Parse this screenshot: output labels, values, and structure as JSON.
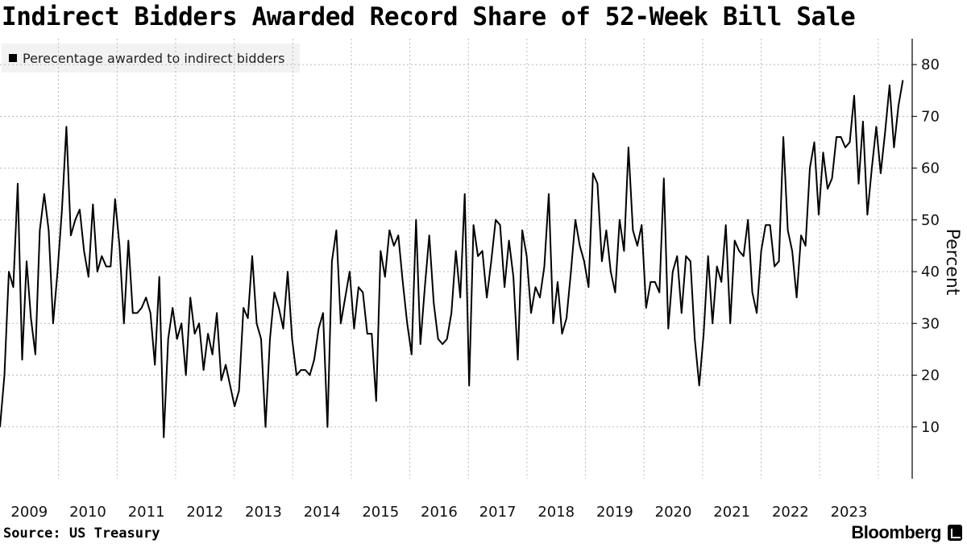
{
  "chart_data": {
    "type": "line",
    "title": "Indirect Bidders Awarded Record Share of 52-Week Bill Sale",
    "ylabel": "Percent",
    "xlabel": "",
    "ylim": [
      0,
      85
    ],
    "yticks": [
      10,
      20,
      30,
      40,
      50,
      60,
      70,
      80
    ],
    "x_start": 2008.5,
    "x_end": 2024.08,
    "xticks": [
      {
        "label": "2009",
        "value": 2009.0
      },
      {
        "label": "2010",
        "value": 2010.0
      },
      {
        "label": "2011",
        "value": 2011.0
      },
      {
        "label": "2012",
        "value": 2012.0
      },
      {
        "label": "2013",
        "value": 2013.0
      },
      {
        "label": "2014",
        "value": 2014.0
      },
      {
        "label": "2015",
        "value": 2015.0
      },
      {
        "label": "2016",
        "value": 2016.0
      },
      {
        "label": "2017",
        "value": 2017.0
      },
      {
        "label": "2018",
        "value": 2018.0
      },
      {
        "label": "2019",
        "value": 2019.0
      },
      {
        "label": "2020",
        "value": 2020.0
      },
      {
        "label": "2021",
        "value": 2021.0
      },
      {
        "label": "2022",
        "value": 2022.0
      },
      {
        "label": "2023",
        "value": 2023.0
      }
    ],
    "grid": true,
    "legend_position": "top-left",
    "series": [
      {
        "name": "Perecentage awarded to indirect bidders",
        "color": "#000000",
        "values": [
          10,
          20,
          40,
          37,
          57,
          23,
          42,
          31,
          24,
          48,
          55,
          48,
          30,
          40,
          52,
          68,
          47,
          50,
          52,
          44,
          39,
          53,
          40,
          43,
          41,
          41,
          54,
          45,
          30,
          46,
          32,
          32,
          33,
          35,
          32,
          22,
          39,
          8,
          27,
          33,
          27,
          30,
          20,
          35,
          28,
          30,
          21,
          28,
          24,
          32,
          19,
          22,
          18,
          14,
          17,
          33,
          31,
          43,
          30,
          27,
          10,
          27,
          36,
          33,
          29,
          40,
          27,
          20,
          21,
          21,
          20,
          23,
          29,
          32,
          10,
          42,
          48,
          30,
          35,
          40,
          29,
          37,
          36,
          28,
          28,
          15,
          44,
          39,
          48,
          45,
          47,
          38,
          30,
          24,
          50,
          26,
          37,
          47,
          34,
          27,
          26,
          27,
          32,
          44,
          35,
          55,
          18,
          49,
          43,
          44,
          35,
          42,
          50,
          49,
          37,
          46,
          39,
          23,
          48,
          43,
          32,
          37,
          35,
          41,
          55,
          30,
          38,
          28,
          31,
          40,
          50,
          45,
          42,
          37,
          59,
          57,
          42,
          48,
          40,
          36,
          50,
          44,
          64,
          48,
          45,
          49,
          33,
          38,
          38,
          36,
          58,
          29,
          40,
          43,
          32,
          43,
          42,
          27,
          18,
          28,
          43,
          30,
          41,
          38,
          49,
          30,
          46,
          44,
          43,
          50,
          36,
          32,
          44,
          49,
          49,
          41,
          42,
          66,
          48,
          44,
          35,
          47,
          45,
          60,
          65,
          51,
          63,
          56,
          58,
          66,
          66,
          64,
          65,
          74,
          57,
          69,
          51,
          60,
          68,
          59,
          67,
          76,
          64,
          72,
          77
        ]
      }
    ]
  },
  "legend": {
    "label": "Perecentage awarded to indirect bidders"
  },
  "footer": {
    "source": "Source: US Treasury",
    "brand": "Bloomberg"
  },
  "style": {
    "line_color": "#000000",
    "grid_color": "#b8b8b8",
    "legend_bg": "#f2f2f2"
  }
}
